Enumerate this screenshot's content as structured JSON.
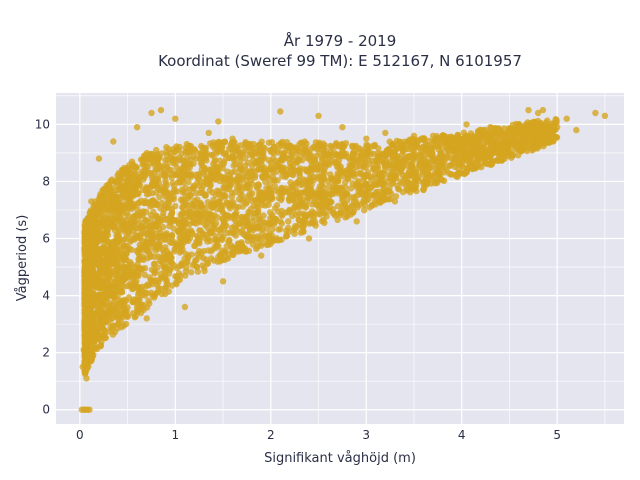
{
  "chart_data": {
    "type": "scatter",
    "title": "År 1979 - 2019",
    "subtitle": "Koordinat (Sweref 99 TM): E 512167, N 6101957",
    "xlabel": "Signifikant våghöjd (m)",
    "ylabel": "Vågperiod (s)",
    "xlim": [
      -0.25,
      5.7
    ],
    "ylim": [
      -0.5,
      11.1
    ],
    "x_ticks": [
      0,
      1,
      2,
      3,
      4,
      5
    ],
    "y_ticks": [
      0,
      2,
      4,
      6,
      8,
      10
    ],
    "x_tick_labels": [
      "0",
      "1",
      "2",
      "3",
      "4",
      "5"
    ],
    "y_tick_labels": [
      "0",
      "2",
      "4",
      "6",
      "8",
      "10"
    ],
    "grid": true,
    "background_color": "#e5e5ef",
    "marker_color": "#d4a520",
    "envelope": {
      "x": [
        0.05,
        0.1,
        0.2,
        0.3,
        0.5,
        0.7,
        1.0,
        1.5,
        2.0,
        2.5,
        3.0,
        3.5,
        4.0,
        4.5,
        5.0
      ],
      "lower": [
        1.2,
        1.6,
        2.1,
        2.5,
        3.0,
        3.5,
        4.3,
        5.2,
        5.8,
        6.4,
        7.0,
        7.6,
        8.2,
        8.8,
        9.4
      ],
      "upper": [
        6.5,
        7.0,
        7.5,
        8.0,
        8.6,
        9.0,
        9.3,
        9.4,
        9.4,
        9.4,
        9.3,
        9.5,
        9.7,
        10.0,
        10.2
      ]
    },
    "points": [
      [
        0.02,
        0.0
      ],
      [
        0.04,
        0.0
      ],
      [
        0.06,
        0.0
      ],
      [
        0.08,
        0.0
      ],
      [
        0.1,
        0.0
      ],
      [
        0.05,
        6.0
      ],
      [
        0.07,
        1.1
      ],
      [
        0.12,
        7.3
      ],
      [
        0.2,
        8.8
      ],
      [
        0.35,
        9.4
      ],
      [
        0.6,
        9.9
      ],
      [
        0.75,
        10.4
      ],
      [
        0.85,
        10.5
      ],
      [
        1.0,
        10.2
      ],
      [
        1.35,
        9.7
      ],
      [
        1.45,
        10.1
      ],
      [
        1.6,
        9.5
      ],
      [
        2.1,
        10.45
      ],
      [
        2.5,
        10.3
      ],
      [
        2.75,
        9.9
      ],
      [
        3.2,
        9.7
      ],
      [
        3.5,
        9.6
      ],
      [
        3.85,
        9.1
      ],
      [
        4.05,
        10.0
      ],
      [
        4.1,
        9.5
      ],
      [
        4.2,
        9.0
      ],
      [
        4.4,
        9.2
      ],
      [
        4.5,
        9.4
      ],
      [
        4.6,
        9.8
      ],
      [
        4.7,
        10.5
      ],
      [
        4.8,
        10.4
      ],
      [
        4.85,
        10.5
      ],
      [
        4.9,
        9.8
      ],
      [
        5.0,
        9.9
      ],
      [
        5.1,
        10.2
      ],
      [
        5.2,
        9.8
      ],
      [
        5.4,
        10.4
      ],
      [
        5.5,
        10.3
      ],
      [
        0.03,
        1.5
      ],
      [
        0.04,
        2.1
      ],
      [
        0.05,
        3.5
      ],
      [
        0.06,
        4.8
      ],
      [
        0.09,
        5.8
      ],
      [
        0.3,
        7.9
      ],
      [
        0.8,
        9.1
      ],
      [
        2.3,
        9.3
      ],
      [
        3.0,
        9.5
      ],
      [
        3.7,
        9.6
      ],
      [
        4.3,
        9.9
      ],
      [
        0.7,
        3.2
      ],
      [
        1.1,
        3.6
      ],
      [
        1.5,
        4.5
      ],
      [
        1.9,
        5.4
      ],
      [
        2.4,
        6.0
      ],
      [
        2.9,
        6.6
      ],
      [
        3.3,
        7.3
      ],
      [
        3.6,
        7.7
      ],
      [
        4.0,
        8.3
      ],
      [
        4.45,
        8.8
      ],
      [
        4.95,
        9.5
      ]
    ]
  }
}
